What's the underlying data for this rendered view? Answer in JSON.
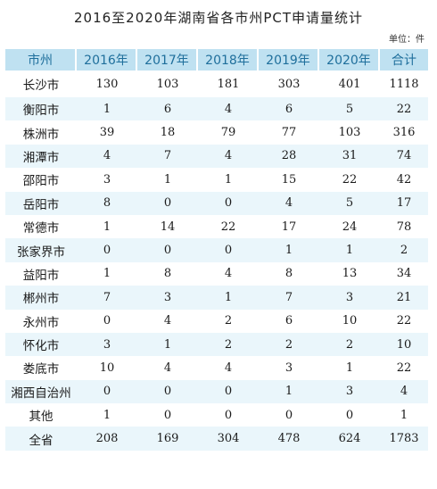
{
  "title": "2016至2020年湖南省各市州PCT申请量统计",
  "unit": "单位：件",
  "headers": [
    "市州",
    "2016年",
    "2017年",
    "2018年",
    "2019年",
    "2020年",
    "合计"
  ],
  "rows": [
    {
      "city": "长沙市",
      "values": [
        "130",
        "103",
        "181",
        "303",
        "401",
        "1118"
      ]
    },
    {
      "city": "衡阳市",
      "values": [
        "1",
        "6",
        "4",
        "6",
        "5",
        "22"
      ]
    },
    {
      "city": "株洲市",
      "values": [
        "39",
        "18",
        "79",
        "77",
        "103",
        "316"
      ]
    },
    {
      "city": "湘潭市",
      "values": [
        "4",
        "7",
        "4",
        "28",
        "31",
        "74"
      ]
    },
    {
      "city": "邵阳市",
      "values": [
        "3",
        "1",
        "1",
        "15",
        "22",
        "42"
      ]
    },
    {
      "city": "岳阳市",
      "values": [
        "8",
        "0",
        "0",
        "4",
        "5",
        "17"
      ]
    },
    {
      "city": "常德市",
      "values": [
        "1",
        "14",
        "22",
        "17",
        "24",
        "78"
      ]
    },
    {
      "city": "张家界市",
      "values": [
        "0",
        "0",
        "0",
        "1",
        "1",
        "2"
      ]
    },
    {
      "city": "益阳市",
      "values": [
        "1",
        "8",
        "4",
        "8",
        "13",
        "34"
      ]
    },
    {
      "city": "郴州市",
      "values": [
        "7",
        "3",
        "1",
        "7",
        "3",
        "21"
      ]
    },
    {
      "city": "永州市",
      "values": [
        "0",
        "4",
        "2",
        "6",
        "10",
        "22"
      ]
    },
    {
      "city": "怀化市",
      "values": [
        "3",
        "1",
        "2",
        "2",
        "2",
        "10"
      ]
    },
    {
      "city": "娄底市",
      "values": [
        "10",
        "4",
        "4",
        "3",
        "1",
        "22"
      ]
    },
    {
      "city": "湘西自治州",
      "values": [
        "0",
        "0",
        "0",
        "1",
        "3",
        "4"
      ]
    },
    {
      "city": "其他",
      "values": [
        "1",
        "0",
        "0",
        "0",
        "0",
        "1"
      ]
    },
    {
      "city": "全省",
      "values": [
        "208",
        "169",
        "304",
        "478",
        "624",
        "1783"
      ]
    }
  ],
  "colors": {
    "header_bg": "#bfe1f1",
    "header_text": "#1f6f9c",
    "stripe_bg": "#eaf6fb"
  }
}
